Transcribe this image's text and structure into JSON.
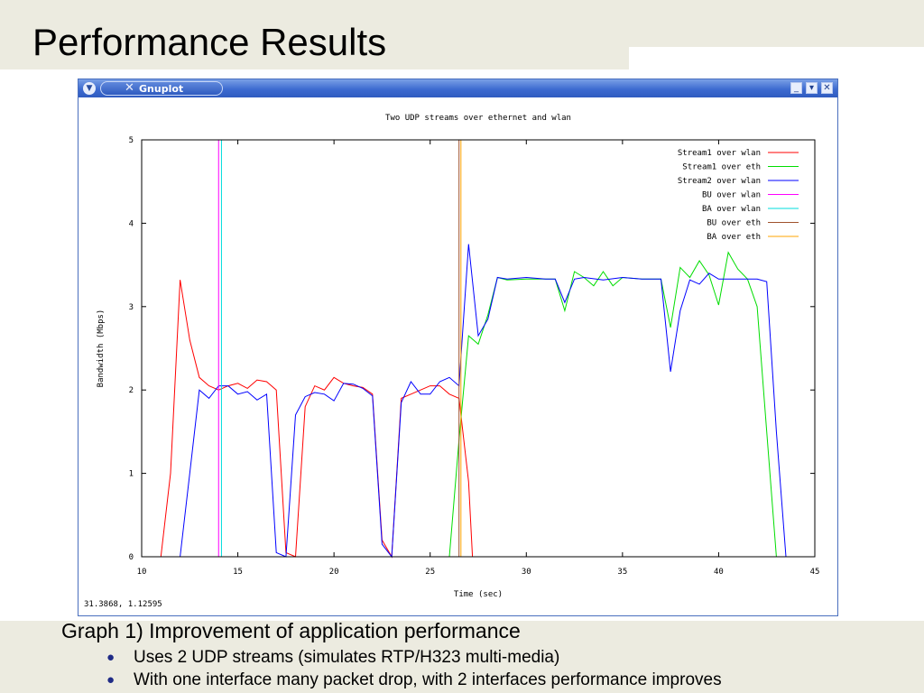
{
  "slide": {
    "title": "Performance Results",
    "caption": "Graph 1) Improvement of application performance",
    "bullets": [
      "Uses 2 UDP streams (simulates RTP/H323 multi-media)",
      "With one interface many packet drop, with 2 interfaces performance improves"
    ]
  },
  "window": {
    "app_name": "Gnuplot",
    "coord_readout": "31.3868,  1.12595",
    "menu_icon": "chevron-down-icon",
    "buttons": [
      "minimize-icon",
      "restore-icon",
      "close-icon"
    ]
  },
  "chart_data": {
    "type": "line",
    "title": "Two UDP streams over ethernet and wlan",
    "xlabel": "Time (sec)",
    "ylabel": "Bandwidth (Mbps)",
    "xlim": [
      10,
      45
    ],
    "ylim": [
      0,
      5
    ],
    "xticks": [
      10,
      15,
      20,
      25,
      30,
      35,
      40,
      45
    ],
    "yticks": [
      0,
      1,
      2,
      3,
      4,
      5
    ],
    "grid": false,
    "legend_position": "top-right",
    "series": [
      {
        "name": "Stream1 over wlan",
        "color": "#ff0000",
        "points": [
          [
            11,
            0
          ],
          [
            11.5,
            1.0
          ],
          [
            12,
            3.32
          ],
          [
            12.5,
            2.6
          ],
          [
            13,
            2.15
          ],
          [
            13.5,
            2.05
          ],
          [
            14,
            2.0
          ],
          [
            14.5,
            2.05
          ],
          [
            15,
            2.08
          ],
          [
            15.5,
            2.02
          ],
          [
            16,
            2.12
          ],
          [
            16.5,
            2.1
          ],
          [
            17,
            2.0
          ],
          [
            17.5,
            0.05
          ],
          [
            18,
            0
          ],
          [
            18.5,
            1.8
          ],
          [
            19,
            2.05
          ],
          [
            19.5,
            2.0
          ],
          [
            20,
            2.15
          ],
          [
            20.5,
            2.08
          ],
          [
            21,
            2.05
          ],
          [
            21.5,
            2.03
          ],
          [
            22,
            1.95
          ],
          [
            22.5,
            0.2
          ],
          [
            23,
            0
          ],
          [
            23.5,
            1.9
          ],
          [
            24,
            1.95
          ],
          [
            24.5,
            2.0
          ],
          [
            25,
            2.05
          ],
          [
            25.5,
            2.05
          ],
          [
            26,
            1.95
          ],
          [
            26.5,
            1.9
          ],
          [
            27,
            0.9
          ],
          [
            27.2,
            0
          ]
        ]
      },
      {
        "name": "Stream1 over eth",
        "color": "#00dd00",
        "points": [
          [
            26,
            0
          ],
          [
            26.5,
            1.4
          ],
          [
            27,
            2.65
          ],
          [
            27.5,
            2.55
          ],
          [
            28,
            2.9
          ],
          [
            28.5,
            3.35
          ],
          [
            29,
            3.32
          ],
          [
            30,
            3.33
          ],
          [
            31,
            3.33
          ],
          [
            31.5,
            3.33
          ],
          [
            32,
            2.95
          ],
          [
            32.5,
            3.42
          ],
          [
            33,
            3.35
          ],
          [
            33.5,
            3.25
          ],
          [
            34,
            3.42
          ],
          [
            34.5,
            3.25
          ],
          [
            35,
            3.35
          ],
          [
            36,
            3.33
          ],
          [
            37,
            3.33
          ],
          [
            37.5,
            2.75
          ],
          [
            38,
            3.47
          ],
          [
            38.5,
            3.35
          ],
          [
            39,
            3.55
          ],
          [
            39.5,
            3.38
          ],
          [
            40,
            3.02
          ],
          [
            40.5,
            3.65
          ],
          [
            41,
            3.45
          ],
          [
            41.5,
            3.33
          ],
          [
            42,
            3.0
          ],
          [
            42.5,
            1.5
          ],
          [
            43,
            0
          ]
        ]
      },
      {
        "name": "Stream2 over wlan",
        "color": "#0000ff",
        "points": [
          [
            12,
            0
          ],
          [
            12.5,
            1.0
          ],
          [
            13,
            2.0
          ],
          [
            13.5,
            1.9
          ],
          [
            14,
            2.05
          ],
          [
            14.5,
            2.05
          ],
          [
            15,
            1.95
          ],
          [
            15.5,
            1.98
          ],
          [
            16,
            1.88
          ],
          [
            16.5,
            1.95
          ],
          [
            17,
            0.05
          ],
          [
            17.5,
            0
          ],
          [
            18,
            1.7
          ],
          [
            18.5,
            1.92
          ],
          [
            19,
            1.97
          ],
          [
            19.5,
            1.95
          ],
          [
            20,
            1.87
          ],
          [
            20.5,
            2.08
          ],
          [
            21,
            2.07
          ],
          [
            21.5,
            2.02
          ],
          [
            22,
            1.93
          ],
          [
            22.5,
            0.15
          ],
          [
            23,
            0
          ],
          [
            23.5,
            1.85
          ],
          [
            24,
            2.1
          ],
          [
            24.5,
            1.95
          ],
          [
            25,
            1.95
          ],
          [
            25.5,
            2.1
          ],
          [
            26,
            2.15
          ],
          [
            26.5,
            2.05
          ],
          [
            27,
            3.75
          ],
          [
            27.5,
            2.65
          ],
          [
            28,
            2.85
          ],
          [
            28.5,
            3.35
          ],
          [
            29,
            3.33
          ],
          [
            30,
            3.35
          ],
          [
            31,
            3.33
          ],
          [
            31.5,
            3.33
          ],
          [
            32,
            3.05
          ],
          [
            32.5,
            3.33
          ],
          [
            33,
            3.35
          ],
          [
            34,
            3.32
          ],
          [
            35,
            3.35
          ],
          [
            36,
            3.33
          ],
          [
            37,
            3.33
          ],
          [
            37.5,
            2.22
          ],
          [
            38,
            2.95
          ],
          [
            38.5,
            3.32
          ],
          [
            39,
            3.27
          ],
          [
            39.5,
            3.4
          ],
          [
            40,
            3.33
          ],
          [
            41,
            3.33
          ],
          [
            41.5,
            3.33
          ],
          [
            42,
            3.33
          ],
          [
            42.5,
            3.3
          ],
          [
            43,
            1.5
          ],
          [
            43.5,
            0
          ]
        ]
      },
      {
        "name": "BU over wlan",
        "color": "#ff00ff",
        "vline": 14.0
      },
      {
        "name": "BA over wlan",
        "color": "#00dddd",
        "vline": 14.15
      },
      {
        "name": "BU over eth",
        "color": "#a0522d",
        "vline": 26.5
      },
      {
        "name": "BA over eth",
        "color": "#ffa500",
        "vline": 26.6
      }
    ]
  }
}
